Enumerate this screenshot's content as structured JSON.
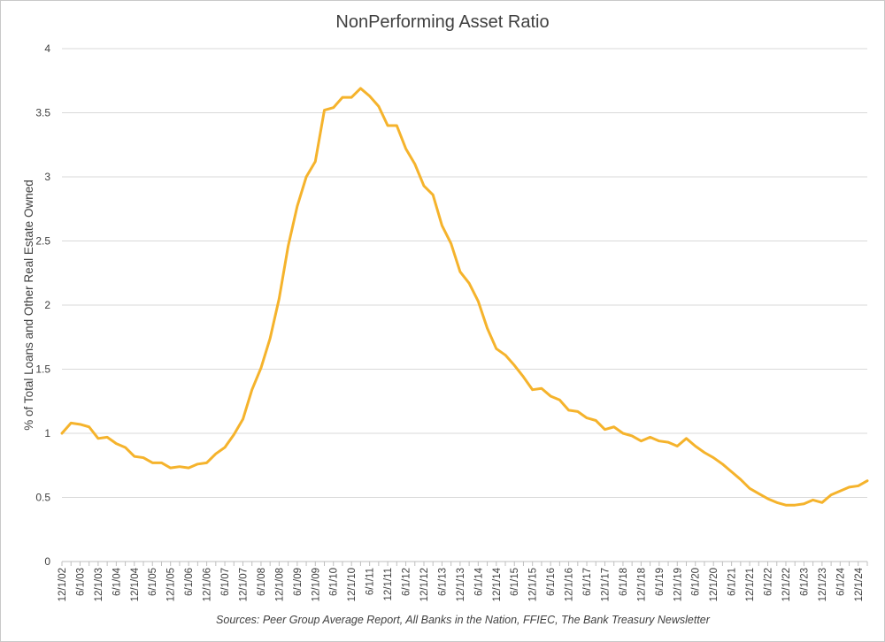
{
  "chart_data": {
    "type": "line",
    "title": "NonPerforming Asset Ratio",
    "xlabel": "",
    "ylabel": "% of Total Loans and Other Real Estate Owned",
    "ylim": [
      0,
      4
    ],
    "yticks": [
      "0",
      "0.5",
      "1",
      "1.5",
      "2",
      "2.5",
      "3",
      "3.5",
      "4"
    ],
    "grid": true,
    "x_tick_labels": [
      "12/1/02",
      "6/1/03",
      "12/1/03",
      "6/1/04",
      "12/1/04",
      "6/1/05",
      "12/1/05",
      "6/1/06",
      "12/1/06",
      "6/1/07",
      "12/1/07",
      "6/1/08",
      "12/1/08",
      "6/1/09",
      "12/1/09",
      "6/1/10",
      "12/1/10",
      "6/1/11",
      "12/1/11",
      "6/1/12",
      "12/1/12",
      "6/1/13",
      "12/1/13",
      "6/1/14",
      "12/1/14",
      "6/1/15",
      "12/1/15",
      "6/1/16",
      "12/1/16",
      "6/1/17",
      "12/1/17",
      "6/1/18",
      "12/1/18",
      "6/1/19",
      "12/1/19",
      "6/1/20",
      "12/1/20",
      "6/1/21",
      "12/1/21",
      "6/1/22",
      "12/1/22",
      "6/1/23",
      "12/1/23",
      "6/1/24",
      "12/1/24"
    ],
    "series": [
      {
        "name": "NonPerforming Asset Ratio",
        "color": "#F5B32C",
        "values": [
          1.0,
          1.08,
          1.07,
          1.05,
          0.96,
          0.97,
          0.92,
          0.89,
          0.82,
          0.81,
          0.77,
          0.77,
          0.73,
          0.74,
          0.73,
          0.76,
          0.77,
          0.84,
          0.89,
          0.99,
          1.11,
          1.34,
          1.51,
          1.74,
          2.05,
          2.46,
          2.77,
          3.0,
          3.12,
          3.52,
          3.54,
          3.62,
          3.62,
          3.69,
          3.63,
          3.55,
          3.4,
          3.4,
          3.22,
          3.1,
          2.93,
          2.86,
          2.62,
          2.48,
          2.26,
          2.17,
          2.03,
          1.82,
          1.66,
          1.61,
          1.53,
          1.44,
          1.34,
          1.35,
          1.29,
          1.26,
          1.18,
          1.17,
          1.12,
          1.1,
          1.03,
          1.05,
          1.0,
          0.98,
          0.94,
          0.97,
          0.94,
          0.93,
          0.9,
          0.96,
          0.9,
          0.85,
          0.81,
          0.76,
          0.7,
          0.64,
          0.57,
          0.53,
          0.49,
          0.46,
          0.44,
          0.44,
          0.45,
          0.48,
          0.46,
          0.52,
          0.55,
          0.58,
          0.59,
          0.63
        ]
      }
    ],
    "source": "Sources: Peer Group Average Report, All Banks in the Nation, FFIEC, The Bank Treasury Newsletter"
  }
}
